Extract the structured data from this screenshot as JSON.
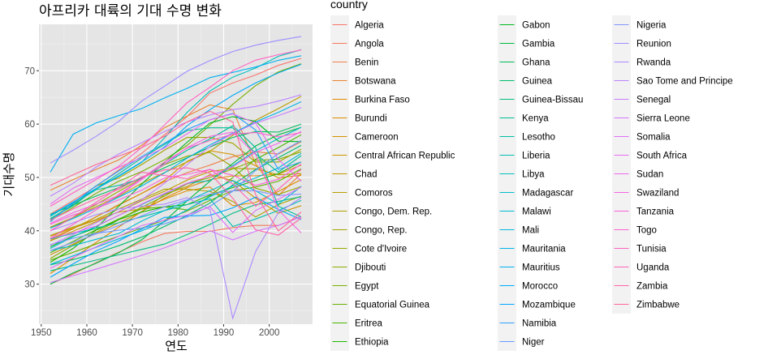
{
  "chart_data": {
    "type": "line",
    "title": "아프리카 대륙의 기대 수명 변화",
    "xlabel": "연도",
    "ylabel": "기대수명",
    "xlim": [
      1949.5,
      2009.5
    ],
    "ylim": [
      22.5,
      78.7
    ],
    "x_ticks": [
      1950,
      1960,
      1970,
      1980,
      1990,
      2000
    ],
    "y_ticks": [
      30,
      40,
      50,
      60,
      70
    ],
    "grid": true,
    "background": "#e5e5e5",
    "legend": {
      "title": "country",
      "placement": "right"
    },
    "x": [
      1952,
      1957,
      1962,
      1967,
      1972,
      1977,
      1982,
      1987,
      1992,
      1997,
      2002,
      2007
    ],
    "series": [
      {
        "name": "Algeria",
        "color": "#F8766D",
        "values": [
          43.1,
          45.7,
          48.3,
          51.4,
          54.5,
          58.0,
          61.4,
          65.8,
          67.7,
          69.2,
          71.0,
          72.3
        ]
      },
      {
        "name": "Angola",
        "color": "#F47A5D",
        "values": [
          30.0,
          31.9,
          34.0,
          36.0,
          37.9,
          39.5,
          39.9,
          39.9,
          40.6,
          41.0,
          41.0,
          42.7
        ]
      },
      {
        "name": "Benin",
        "color": "#EF7F4A",
        "values": [
          38.2,
          40.4,
          42.6,
          44.9,
          47.0,
          49.2,
          50.9,
          52.3,
          53.9,
          54.8,
          54.4,
          56.7
        ]
      },
      {
        "name": "Botswana",
        "color": "#E98432",
        "values": [
          47.6,
          49.6,
          51.5,
          53.3,
          56.0,
          59.3,
          61.5,
          63.6,
          62.7,
          52.6,
          46.6,
          50.7
        ]
      },
      {
        "name": "Burkina Faso",
        "color": "#E38900",
        "values": [
          32.0,
          34.9,
          37.8,
          40.7,
          43.6,
          46.1,
          48.1,
          49.6,
          50.3,
          50.3,
          50.6,
          52.3
        ]
      },
      {
        "name": "Burundi",
        "color": "#DC8E00",
        "values": [
          39.0,
          40.5,
          42.0,
          43.5,
          44.1,
          45.9,
          47.5,
          48.2,
          44.7,
          45.3,
          47.4,
          49.6
        ]
      },
      {
        "name": "Cameroon",
        "color": "#D49200",
        "values": [
          38.5,
          40.4,
          42.6,
          44.8,
          47.0,
          49.4,
          53.0,
          55.0,
          54.3,
          52.2,
          49.9,
          50.4
        ]
      },
      {
        "name": "Central African Republic",
        "color": "#CC9600",
        "values": [
          35.5,
          37.5,
          39.5,
          41.5,
          43.5,
          46.8,
          48.3,
          50.5,
          49.4,
          46.1,
          43.3,
          44.7
        ]
      },
      {
        "name": "Chad",
        "color": "#C29A00",
        "values": [
          38.1,
          39.9,
          41.7,
          43.6,
          45.6,
          47.4,
          49.5,
          51.1,
          51.7,
          51.6,
          50.5,
          50.7
        ]
      },
      {
        "name": "Comoros",
        "color": "#B89E00",
        "values": [
          40.7,
          42.5,
          44.5,
          46.5,
          48.9,
          50.9,
          52.9,
          54.9,
          57.9,
          60.7,
          62.9,
          65.2
        ]
      },
      {
        "name": "Congo, Dem. Rep.",
        "color": "#AEA200",
        "values": [
          39.1,
          40.7,
          42.1,
          44.1,
          45.9,
          47.8,
          47.8,
          47.4,
          45.5,
          42.6,
          44.9,
          46.5
        ]
      },
      {
        "name": "Congo, Rep.",
        "color": "#A2A500",
        "values": [
          42.1,
          45.1,
          48.4,
          49.9,
          52.4,
          55.1,
          57.5,
          57.5,
          56.4,
          52.9,
          52.9,
          55.3
        ]
      },
      {
        "name": "Cote d'Ivoire",
        "color": "#95A900",
        "values": [
          40.5,
          42.5,
          44.9,
          47.4,
          49.8,
          52.4,
          53.98,
          54.7,
          52.0,
          47.99,
          46.8,
          48.3
        ]
      },
      {
        "name": "Djibouti",
        "color": "#87AC00",
        "values": [
          34.8,
          37.3,
          39.7,
          42.1,
          44.4,
          46.5,
          48.8,
          50.0,
          51.6,
          53.2,
          53.4,
          54.8
        ]
      },
      {
        "name": "Egypt",
        "color": "#77AF00",
        "values": [
          41.9,
          44.4,
          47.0,
          49.3,
          51.1,
          53.3,
          56.0,
          59.8,
          63.7,
          67.2,
          69.8,
          71.3
        ]
      },
      {
        "name": "Equatorial Guinea",
        "color": "#64B200",
        "values": [
          34.5,
          35.98,
          37.5,
          38.99,
          40.5,
          42.0,
          43.7,
          45.7,
          47.5,
          48.2,
          49.3,
          51.6
        ]
      },
      {
        "name": "Eritrea",
        "color": "#4BB400",
        "values": [
          35.9,
          38.0,
          40.2,
          42.2,
          44.1,
          44.5,
          43.9,
          46.5,
          49.99,
          53.4,
          55.6,
          58.0
        ]
      },
      {
        "name": "Ethiopia",
        "color": "#1FB700",
        "values": [
          34.1,
          36.7,
          40.1,
          42.1,
          43.5,
          44.5,
          44.9,
          46.7,
          48.1,
          49.4,
          50.7,
          52.9
        ]
      },
      {
        "name": "Gabon",
        "color": "#00B81F",
        "values": [
          37.0,
          38.99,
          40.5,
          44.6,
          48.7,
          52.8,
          56.6,
          60.2,
          61.4,
          60.5,
          56.8,
          56.7
        ]
      },
      {
        "name": "Gambia",
        "color": "#00BA42",
        "values": [
          30.0,
          32.1,
          33.9,
          35.9,
          38.3,
          41.8,
          45.6,
          49.3,
          52.6,
          55.9,
          58.0,
          59.4
        ]
      },
      {
        "name": "Ghana",
        "color": "#00BB5B",
        "values": [
          43.1,
          44.8,
          46.5,
          48.1,
          49.9,
          51.8,
          53.7,
          55.7,
          57.5,
          58.6,
          58.5,
          60.0
        ]
      },
      {
        "name": "Guinea",
        "color": "#00BC6F",
        "values": [
          33.6,
          34.6,
          35.8,
          37.2,
          38.8,
          40.8,
          42.9,
          45.2,
          48.6,
          51.5,
          53.7,
          56.0
        ]
      },
      {
        "name": "Guinea-Bissau",
        "color": "#00BD81",
        "values": [
          32.5,
          33.5,
          34.5,
          35.5,
          36.5,
          37.5,
          39.3,
          41.2,
          43.3,
          44.9,
          45.5,
          46.4
        ]
      },
      {
        "name": "Kenya",
        "color": "#00BE91",
        "values": [
          42.3,
          44.7,
          47.9,
          50.7,
          53.6,
          56.2,
          58.8,
          59.3,
          59.3,
          54.4,
          50.99,
          54.1
        ]
      },
      {
        "name": "Lesotho",
        "color": "#00BFA0",
        "values": [
          42.1,
          45.0,
          47.7,
          48.5,
          49.8,
          52.5,
          55.1,
          57.2,
          59.7,
          55.6,
          44.6,
          42.6
        ]
      },
      {
        "name": "Liberia",
        "color": "#00BFAE",
        "values": [
          38.5,
          39.5,
          40.5,
          41.5,
          42.6,
          43.8,
          44.9,
          46.0,
          40.8,
          42.2,
          43.8,
          45.7
        ]
      },
      {
        "name": "Libya",
        "color": "#00BFBB",
        "values": [
          42.7,
          45.3,
          47.8,
          50.2,
          52.8,
          57.4,
          62.2,
          66.2,
          68.8,
          70.5,
          72.7,
          73.95
        ]
      },
      {
        "name": "Madagascar",
        "color": "#00BDC8",
        "values": [
          36.7,
          38.9,
          40.8,
          42.9,
          44.9,
          46.9,
          48.9,
          49.4,
          52.2,
          54.98,
          57.3,
          59.4
        ]
      },
      {
        "name": "Malawi",
        "color": "#00BBD3",
        "values": [
          36.3,
          37.2,
          38.4,
          39.5,
          41.8,
          43.8,
          45.6,
          47.5,
          49.4,
          47.5,
          45.0,
          48.3
        ]
      },
      {
        "name": "Mali",
        "color": "#00B8DE",
        "values": [
          33.7,
          35.3,
          36.9,
          38.5,
          40.0,
          41.7,
          43.9,
          46.4,
          48.4,
          49.9,
          51.8,
          54.5
        ]
      },
      {
        "name": "Mauritania",
        "color": "#00B4E8",
        "values": [
          40.5,
          42.3,
          44.2,
          46.3,
          48.4,
          50.85,
          53.6,
          56.1,
          58.3,
          60.4,
          62.2,
          64.2
        ]
      },
      {
        "name": "Mauritius",
        "color": "#00B0F1",
        "values": [
          50.99,
          58.1,
          60.2,
          61.6,
          62.9,
          64.9,
          66.7,
          68.7,
          69.7,
          70.7,
          71.95,
          72.8
        ]
      },
      {
        "name": "Morocco",
        "color": "#00ABF9",
        "values": [
          42.9,
          45.4,
          47.9,
          50.3,
          52.9,
          55.7,
          59.7,
          62.7,
          65.4,
          67.7,
          69.6,
          71.2
        ]
      },
      {
        "name": "Mozambique",
        "color": "#00A5FF",
        "values": [
          31.3,
          33.8,
          36.2,
          38.1,
          40.3,
          42.5,
          42.8,
          42.9,
          44.3,
          46.3,
          44.0,
          42.1
        ]
      },
      {
        "name": "Namibia",
        "color": "#2B9FFF",
        "values": [
          41.7,
          45.2,
          48.4,
          51.2,
          53.9,
          56.4,
          58.97,
          60.8,
          61.99,
          58.9,
          51.5,
          52.9
        ]
      },
      {
        "name": "Niger",
        "color": "#6699FF",
        "values": [
          37.4,
          38.6,
          39.5,
          40.1,
          40.5,
          41.3,
          42.6,
          44.6,
          47.4,
          51.3,
          54.5,
          56.9
        ]
      },
      {
        "name": "Nigeria",
        "color": "#8594FF",
        "values": [
          36.3,
          37.8,
          39.4,
          41.0,
          42.8,
          44.5,
          45.8,
          46.9,
          47.5,
          47.5,
          46.6,
          46.9
        ]
      },
      {
        "name": "Reunion",
        "color": "#9B8EFF",
        "values": [
          52.7,
          55.1,
          57.7,
          60.5,
          64.3,
          67.1,
          69.9,
          71.9,
          73.6,
          74.8,
          75.7,
          76.4
        ]
      },
      {
        "name": "Rwanda",
        "color": "#AC88FF",
        "values": [
          40.0,
          41.5,
          43.0,
          44.1,
          44.6,
          45.0,
          46.2,
          44.0,
          23.6,
          36.1,
          43.4,
          46.2
        ]
      },
      {
        "name": "Sao Tome and Principe",
        "color": "#BB83FF",
        "values": [
          46.5,
          48.9,
          51.9,
          54.4,
          56.5,
          58.6,
          60.4,
          61.7,
          62.7,
          63.3,
          64.3,
          65.5
        ]
      },
      {
        "name": "Senegal",
        "color": "#C87DFF",
        "values": [
          37.3,
          39.3,
          41.5,
          43.6,
          45.8,
          48.9,
          52.4,
          55.8,
          58.2,
          60.2,
          61.6,
          63.1
        ]
      },
      {
        "name": "Sierra Leone",
        "color": "#D476FF",
        "values": [
          30.3,
          31.6,
          32.8,
          34.1,
          35.4,
          36.8,
          38.4,
          40.0,
          38.3,
          39.9,
          41.0,
          42.6
        ]
      },
      {
        "name": "Somalia",
        "color": "#DE70F9",
        "values": [
          32.98,
          34.98,
          36.98,
          38.98,
          40.97,
          41.97,
          42.96,
          44.5,
          39.7,
          43.8,
          45.9,
          48.2
        ]
      },
      {
        "name": "South Africa",
        "color": "#E76BF3",
        "values": [
          45.0,
          47.99,
          49.95,
          51.9,
          53.7,
          55.5,
          58.2,
          60.8,
          61.9,
          60.2,
          53.4,
          49.3
        ]
      },
      {
        "name": "Sudan",
        "color": "#EF67EB",
        "values": [
          38.6,
          39.6,
          40.9,
          42.9,
          44.99,
          47.0,
          48.9,
          50.3,
          52.0,
          54.7,
          56.4,
          58.6
        ]
      },
      {
        "name": "Swaziland",
        "color": "#F564E3",
        "values": [
          41.4,
          43.4,
          44.99,
          46.6,
          49.6,
          52.5,
          55.6,
          57.7,
          58.5,
          54.3,
          43.9,
          39.6
        ]
      },
      {
        "name": "Tanzania",
        "color": "#FA62D9",
        "values": [
          41.2,
          42.97,
          44.2,
          45.8,
          47.6,
          49.9,
          50.6,
          51.5,
          50.4,
          48.5,
          49.65,
          52.5
        ]
      },
      {
        "name": "Togo",
        "color": "#FD61CF",
        "values": [
          38.6,
          41.2,
          43.9,
          46.8,
          49.8,
          52.9,
          55.5,
          56.9,
          58.1,
          58.4,
          57.6,
          58.4
        ]
      },
      {
        "name": "Tunisia",
        "color": "#FF61C3",
        "values": [
          44.6,
          47.1,
          49.6,
          52.1,
          55.6,
          59.8,
          64.0,
          66.9,
          70.0,
          71.97,
          73.0,
          73.9
        ]
      },
      {
        "name": "Uganda",
        "color": "#FF62B6",
        "values": [
          39.98,
          42.6,
          45.3,
          48.1,
          51.0,
          50.35,
          49.8,
          51.5,
          48.8,
          44.6,
          47.8,
          51.5
        ]
      },
      {
        "name": "Zambia",
        "color": "#FF64A8",
        "values": [
          42.0,
          44.1,
          46.0,
          47.8,
          50.1,
          51.4,
          51.8,
          50.8,
          46.1,
          40.2,
          39.2,
          42.4
        ]
      },
      {
        "name": "Zimbabwe",
        "color": "#FF6699",
        "values": [
          48.5,
          50.5,
          52.4,
          54.0,
          55.6,
          57.7,
          60.4,
          62.4,
          60.4,
          46.8,
          39.99,
          43.5
        ]
      }
    ]
  }
}
